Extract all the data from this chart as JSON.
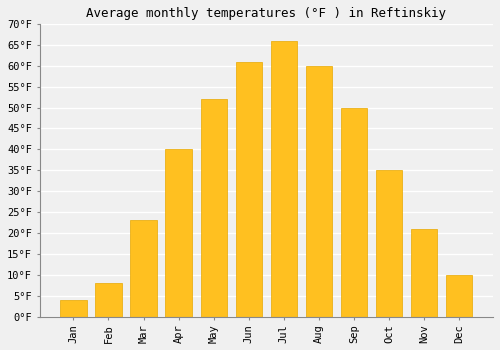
{
  "title": "Average monthly temperatures (°F ) in Reftinskiy",
  "months": [
    "Jan",
    "Feb",
    "Mar",
    "Apr",
    "May",
    "Jun",
    "Jul",
    "Aug",
    "Sep",
    "Oct",
    "Nov",
    "Dec"
  ],
  "values": [
    4,
    8,
    23,
    40,
    52,
    61,
    66,
    60,
    50,
    35,
    21,
    10
  ],
  "bar_color": "#FFC020",
  "bar_edge_color": "#E8A800",
  "ylim": [
    0,
    70
  ],
  "yticks": [
    0,
    5,
    10,
    15,
    20,
    25,
    30,
    35,
    40,
    45,
    50,
    55,
    60,
    65,
    70
  ],
  "ytick_labels": [
    "0°F",
    "5°F",
    "10°F",
    "15°F",
    "20°F",
    "25°F",
    "30°F",
    "35°F",
    "40°F",
    "45°F",
    "50°F",
    "55°F",
    "60°F",
    "65°F",
    "70°F"
  ],
  "background_color": "#f0f0f0",
  "grid_color": "#ffffff",
  "title_fontsize": 9,
  "tick_fontsize": 7.5,
  "font_family": "monospace",
  "bar_width": 0.75
}
